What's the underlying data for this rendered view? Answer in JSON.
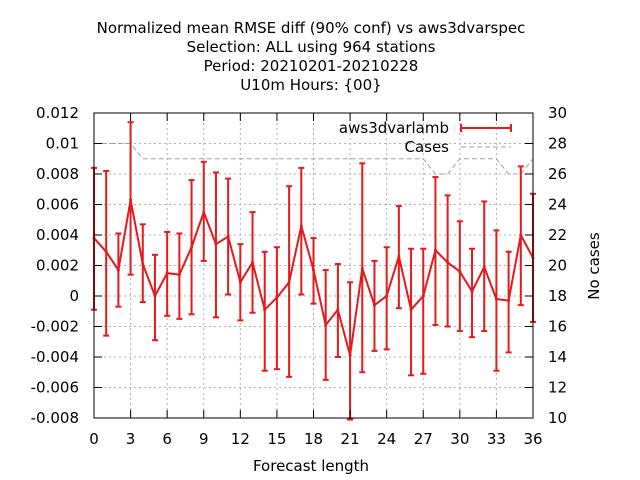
{
  "chart_data": {
    "type": "line",
    "title_lines": [
      "Normalized mean RMSE diff (90% conf) vs aws3dvarspec",
      "Selection: ALL using   964 stations",
      "Period: 20210201-20210228",
      "U10m   Hours: {00}"
    ],
    "xlabel": "Forecast length",
    "ylabel": "",
    "y2label": "No cases",
    "xlim": [
      0,
      36
    ],
    "ylim": [
      -0.008,
      0.012
    ],
    "y2lim": [
      10,
      30
    ],
    "x_ticks": [
      0,
      3,
      6,
      9,
      12,
      15,
      18,
      21,
      24,
      27,
      30,
      33,
      36
    ],
    "y_ticks": [
      "-0.008",
      "-0.006",
      "-0.004",
      "-0.002",
      "0",
      "0.002",
      "0.004",
      "0.006",
      "0.008",
      "0.01",
      "0.012"
    ],
    "y2_ticks": [
      "10",
      "12",
      "14",
      "16",
      "18",
      "20",
      "22",
      "24",
      "26",
      "28",
      "30"
    ],
    "grid": true,
    "legend_position": "top-right",
    "colors": {
      "diff": "#e41a1c",
      "cases": "#a0a0a0",
      "grid": "#b0b0b0"
    },
    "series": [
      {
        "name": "aws3dvarlamb",
        "x": [
          0,
          1,
          2,
          3,
          4,
          5,
          6,
          7,
          8,
          9,
          10,
          11,
          12,
          13,
          14,
          15,
          16,
          17,
          18,
          19,
          20,
          21,
          22,
          23,
          24,
          25,
          26,
          27,
          28,
          29,
          30,
          31,
          32,
          33,
          34,
          35,
          36
        ],
        "y": [
          0.0038,
          0.0029,
          0.0017,
          0.0063,
          0.0021,
          0.0,
          0.0015,
          0.0014,
          0.0032,
          0.0055,
          0.0034,
          0.0039,
          0.0009,
          0.0022,
          -0.0009,
          -0.0001,
          0.0009,
          0.0046,
          0.0017,
          -0.0019,
          -0.0009,
          -0.0039,
          0.0018,
          -0.0006,
          0.0,
          0.0026,
          -0.0009,
          0.0,
          0.003,
          0.0022,
          0.0016,
          0.0003,
          0.0019,
          -0.0002,
          -0.0003,
          0.004,
          0.0025
        ],
        "lower": [
          -0.0009,
          -0.0026,
          -0.0007,
          0.0014,
          -0.0004,
          -0.0029,
          -0.0013,
          -0.0015,
          -0.0012,
          0.0023,
          -0.0014,
          0.0001,
          -0.0016,
          -0.0011,
          -0.0049,
          -0.0048,
          -0.0053,
          0.0001,
          -0.0005,
          -0.0055,
          -0.004,
          -0.0081,
          -0.005,
          -0.0036,
          -0.0035,
          -0.0008,
          -0.0052,
          -0.0051,
          -0.0019,
          -0.002,
          -0.0023,
          -0.0027,
          -0.0023,
          -0.0049,
          -0.0037,
          -0.0006,
          -0.0017
        ],
        "upper": [
          0.0084,
          0.0082,
          0.0041,
          0.0114,
          0.0047,
          0.0027,
          0.0042,
          0.0041,
          0.0076,
          0.0088,
          0.0081,
          0.0077,
          0.0034,
          0.0055,
          0.0029,
          0.0032,
          0.0072,
          0.0084,
          0.0038,
          0.0017,
          0.0021,
          0.0009,
          0.0087,
          0.0023,
          0.0032,
          0.0059,
          0.0031,
          0.0031,
          0.0078,
          0.0066,
          0.0049,
          0.0031,
          0.0062,
          0.0043,
          0.0029,
          0.0085,
          0.0067
        ]
      },
      {
        "name": "Cases",
        "axis": "y2",
        "x": [
          0,
          1,
          2,
          3,
          4,
          5,
          6,
          7,
          8,
          9,
          10,
          11,
          12,
          13,
          14,
          15,
          16,
          17,
          18,
          19,
          20,
          21,
          22,
          23,
          24,
          25,
          26,
          27,
          28,
          29,
          30,
          31,
          32,
          33,
          34,
          35,
          36
        ],
        "y": [
          28,
          28,
          28,
          28,
          27,
          27,
          27,
          27,
          27,
          27,
          27,
          27,
          27,
          27,
          27,
          27,
          27,
          27,
          27,
          27,
          27,
          27,
          27,
          27,
          27,
          27,
          27,
          27,
          26,
          26,
          27,
          27,
          27,
          27,
          26,
          26,
          27
        ]
      }
    ]
  }
}
